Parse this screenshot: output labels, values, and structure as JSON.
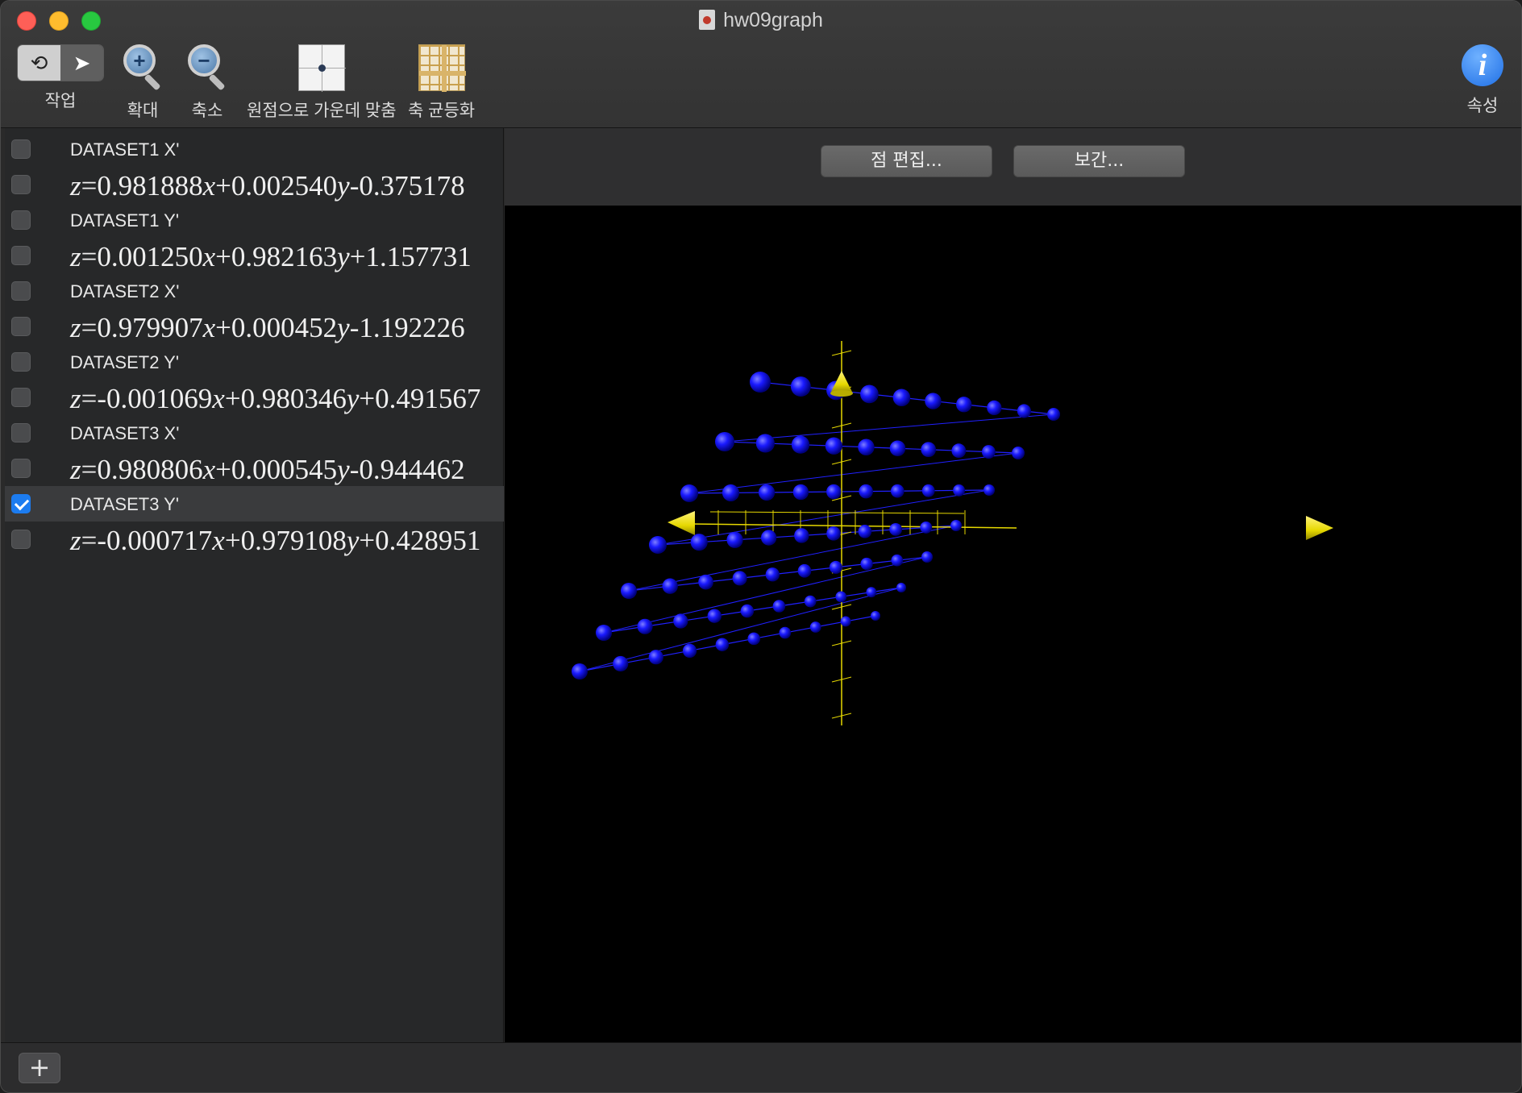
{
  "window": {
    "title": "hw09graph"
  },
  "toolbar": {
    "action_label": "작업",
    "zoom_in_label": "확대",
    "zoom_out_label": "축소",
    "center_origin_label": "원점으로 가운데 맞춤",
    "equalize_axes_label": "축 균등화",
    "properties_label": "속성"
  },
  "datasets": [
    {
      "name": "DATASET1 X'",
      "equation": "z=0.981888x+0.002540y-0.375178",
      "checked": false
    },
    {
      "name": "DATASET1 Y'",
      "equation": "z=0.001250x+0.982163y+1.157731",
      "checked": false
    },
    {
      "name": "DATASET2 X'",
      "equation": "z=0.979907x+0.000452y-1.192226",
      "checked": false
    },
    {
      "name": "DATASET2 Y'",
      "equation": "z=-0.001069x+0.980346y+0.491567",
      "checked": false
    },
    {
      "name": "DATASET3 X'",
      "equation": "z=0.980806x+0.000545y-0.944462",
      "checked": false
    },
    {
      "name": "DATASET3 Y'",
      "equation": "z=-0.000717x+0.979108y+0.428951",
      "checked": true,
      "selected": true
    }
  ],
  "main": {
    "edit_points_label": "점 편집...",
    "interpolate_label": "보간..."
  },
  "bottom": {
    "add_label": "+"
  },
  "colors": {
    "points": "#1a1aff",
    "axes": "#e6d800",
    "selected_checkbox": "#1c7cf0"
  }
}
